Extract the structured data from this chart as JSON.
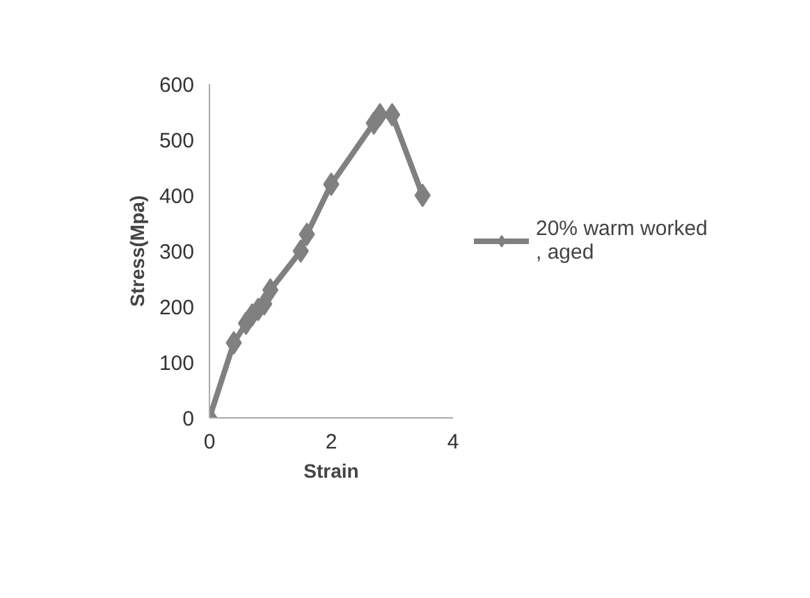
{
  "chart_data": {
    "type": "line",
    "xlabel": "Strain",
    "ylabel": "Stress(Mpa)",
    "x": [
      0,
      0.4,
      0.6,
      0.7,
      0.8,
      0.9,
      1.0,
      1.5,
      1.6,
      2.0,
      2.7,
      2.8,
      3.0,
      3.5
    ],
    "series": [
      {
        "name": "20% warm worked\n, aged",
        "color": "#808080",
        "values": [
          0,
          135,
          170,
          185,
          195,
          205,
          230,
          300,
          330,
          420,
          530,
          545,
          545,
          400
        ]
      }
    ],
    "xlim": [
      0,
      4
    ],
    "xticks": [
      0,
      2,
      4
    ],
    "ylim": [
      0,
      600
    ],
    "yticks": [
      0,
      100,
      200,
      300,
      400,
      500,
      600
    ],
    "grid": false,
    "legend": "right",
    "marker": "diamond",
    "line_style": "solid"
  }
}
